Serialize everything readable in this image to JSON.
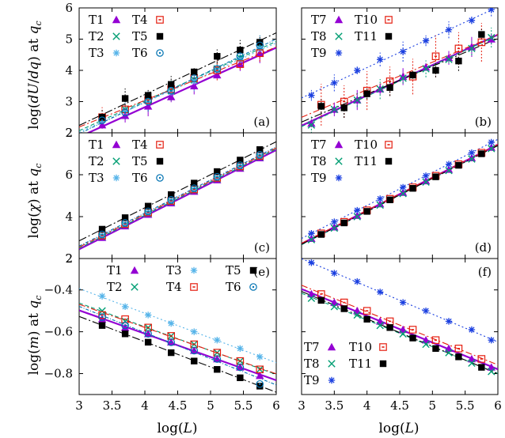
{
  "figure": {
    "xlabel_left": "log(L)",
    "xlabel_right": "log(L)",
    "row_ylabels": [
      "log(dU/dq) at q_c",
      "log(χ) at q_c",
      "log(m) at q_c"
    ]
  },
  "colors": {
    "T1": "#9400d3",
    "T2": "#009e73",
    "T3": "#56b4e9",
    "T4": "#e51e10",
    "T5": "#000000",
    "T6": "#0072b2",
    "T7": "#9400d3",
    "T8": "#009e73",
    "T9": "#1a3fe0",
    "T10": "#e51e10",
    "T11": "#000000"
  },
  "chart_data": [
    {
      "type": "scatter",
      "panel_label": "(a)",
      "xlim": [
        3,
        6
      ],
      "ylim": [
        2,
        6
      ],
      "xticks": [
        "3",
        "3.5",
        "4",
        "4.5",
        "5",
        "5.5",
        "6"
      ],
      "yticks": [
        "2",
        "3",
        "4",
        "5",
        "6"
      ],
      "xlabel": "",
      "ylabel": "log(dU/dq) at q_c",
      "legend_position": "top-left",
      "legend_cols": 2,
      "legend": [
        "T1",
        "T4",
        "T2",
        "T5",
        "T3",
        "T6"
      ],
      "series": [
        {
          "name": "T1",
          "marker": "triangle",
          "x": [
            3.35,
            3.7,
            4.05,
            4.4,
            4.75,
            5.1,
            5.45,
            5.75
          ],
          "y": [
            2.25,
            2.55,
            2.85,
            3.15,
            3.5,
            3.85,
            4.2,
            4.55
          ]
        },
        {
          "name": "T2",
          "marker": "x",
          "x": [
            3.35,
            3.7,
            4.05,
            4.4,
            4.75,
            5.1,
            5.45,
            5.75
          ],
          "y": [
            2.45,
            2.75,
            3.05,
            3.35,
            3.7,
            4.05,
            4.4,
            4.75
          ]
        },
        {
          "name": "T3",
          "marker": "star",
          "x": [
            3.35,
            3.7,
            4.05,
            4.4,
            4.75,
            5.1,
            5.45,
            5.75
          ],
          "y": [
            2.4,
            2.7,
            3.0,
            3.3,
            3.65,
            4.0,
            4.35,
            4.7
          ]
        },
        {
          "name": "T4",
          "marker": "boxdot",
          "x": [
            3.35,
            3.7,
            4.05,
            4.4,
            4.75,
            5.1,
            5.45,
            5.75
          ],
          "y": [
            2.5,
            2.75,
            3.05,
            3.4,
            3.75,
            4.0,
            4.2,
            4.55
          ]
        },
        {
          "name": "T5",
          "marker": "square",
          "x": [
            3.35,
            3.7,
            4.05,
            4.4,
            4.75,
            5.1,
            5.45,
            5.75
          ],
          "y": [
            2.5,
            3.1,
            3.2,
            3.55,
            3.95,
            4.45,
            4.65,
            4.9
          ]
        },
        {
          "name": "T6",
          "marker": "circle",
          "x": [
            3.35,
            3.7,
            4.05,
            4.4,
            4.75,
            5.1,
            5.45,
            5.75
          ],
          "y": [
            2.4,
            2.65,
            3.0,
            3.35,
            3.75,
            4.05,
            4.45,
            4.8
          ]
        }
      ]
    },
    {
      "type": "scatter",
      "panel_label": "(b)",
      "xlim": [
        3,
        6
      ],
      "ylim": [
        2,
        6
      ],
      "xticks": [
        "3",
        "3.5",
        "4",
        "4.5",
        "5",
        "5.5",
        "6"
      ],
      "yticks": [
        "2",
        "3",
        "4",
        "5",
        "6"
      ],
      "xlabel": "",
      "ylabel": "",
      "legend_position": "top-left",
      "legend_cols": 2,
      "legend": [
        "T7",
        "T10",
        "T8",
        "T11",
        "T9"
      ],
      "series": [
        {
          "name": "T7",
          "marker": "triangle",
          "x": [
            3.15,
            3.5,
            3.85,
            4.2,
            4.55,
            4.9,
            5.25,
            5.6,
            5.9
          ],
          "y": [
            2.3,
            2.75,
            3.05,
            3.4,
            3.8,
            4.1,
            4.4,
            4.75,
            5.0
          ]
        },
        {
          "name": "T8",
          "marker": "x",
          "x": [
            3.15,
            3.5,
            3.85,
            4.2,
            4.55,
            4.9,
            5.25,
            5.6,
            5.9
          ],
          "y": [
            2.25,
            2.75,
            3.05,
            3.4,
            3.75,
            4.05,
            4.35,
            4.7,
            5.05
          ]
        },
        {
          "name": "T9",
          "marker": "star",
          "x": [
            3.15,
            3.5,
            3.85,
            4.2,
            4.55,
            4.9,
            5.25,
            5.6,
            5.9
          ],
          "y": [
            3.2,
            3.6,
            4.0,
            4.35,
            4.6,
            4.95,
            5.3,
            5.6,
            5.95
          ]
        },
        {
          "name": "T10",
          "marker": "boxdot",
          "x": [
            3.3,
            3.65,
            4.0,
            4.35,
            4.7,
            5.05,
            5.4,
            5.75
          ],
          "y": [
            2.9,
            3.0,
            3.35,
            3.65,
            3.8,
            4.45,
            4.7,
            4.9
          ]
        },
        {
          "name": "T11",
          "marker": "square",
          "x": [
            3.3,
            3.65,
            4.0,
            4.35,
            4.7,
            5.05,
            5.4,
            5.75
          ],
          "y": [
            2.85,
            2.8,
            3.25,
            3.45,
            3.85,
            4.0,
            4.3,
            5.15
          ]
        }
      ]
    },
    {
      "type": "scatter",
      "panel_label": "(c)",
      "xlim": [
        3,
        6
      ],
      "ylim": [
        2,
        8
      ],
      "xticks": [
        "3",
        "3.5",
        "4",
        "4.5",
        "5",
        "5.5",
        "6"
      ],
      "yticks": [
        "2",
        "4",
        "6"
      ],
      "xlabel": "",
      "ylabel": "log(χ) at q_c",
      "legend_position": "top-left",
      "legend_cols": 2,
      "legend": [
        "T1",
        "T4",
        "T2",
        "T5",
        "T3",
        "T6"
      ],
      "series": [
        {
          "name": "T1",
          "marker": "triangle",
          "x": [
            3.35,
            3.7,
            4.05,
            4.4,
            4.75,
            5.1,
            5.45,
            5.75
          ],
          "y": [
            3.0,
            3.55,
            4.1,
            4.65,
            5.2,
            5.75,
            6.3,
            6.8
          ]
        },
        {
          "name": "T2",
          "marker": "x",
          "x": [
            3.35,
            3.7,
            4.05,
            4.4,
            4.75,
            5.1,
            5.45,
            5.75
          ],
          "y": [
            3.05,
            3.6,
            4.15,
            4.7,
            5.25,
            5.8,
            6.35,
            6.85
          ]
        },
        {
          "name": "T3",
          "marker": "star",
          "x": [
            3.35,
            3.7,
            4.05,
            4.4,
            4.75,
            5.1,
            5.45,
            5.75
          ],
          "y": [
            3.1,
            3.65,
            4.2,
            4.75,
            5.3,
            5.85,
            6.4,
            6.9
          ]
        },
        {
          "name": "T4",
          "marker": "boxdot",
          "x": [
            3.35,
            3.7,
            4.05,
            4.4,
            4.75,
            5.1,
            5.45,
            5.75
          ],
          "y": [
            3.1,
            3.65,
            4.2,
            4.75,
            5.3,
            5.85,
            6.4,
            6.9
          ]
        },
        {
          "name": "T5",
          "marker": "square",
          "x": [
            3.35,
            3.7,
            4.05,
            4.4,
            4.75,
            5.1,
            5.45,
            5.75
          ],
          "y": [
            3.4,
            3.95,
            4.5,
            5.05,
            5.6,
            6.15,
            6.7,
            7.2
          ]
        },
        {
          "name": "T6",
          "marker": "circle",
          "x": [
            3.35,
            3.7,
            4.05,
            4.4,
            4.75,
            5.1,
            5.45,
            5.75
          ],
          "y": [
            3.15,
            3.7,
            4.25,
            4.8,
            5.35,
            5.9,
            6.45,
            6.95
          ]
        }
      ]
    },
    {
      "type": "scatter",
      "panel_label": "(d)",
      "xlim": [
        3,
        6
      ],
      "ylim": [
        2,
        8
      ],
      "xticks": [
        "3",
        "3.5",
        "4",
        "4.5",
        "5",
        "5.5",
        "6"
      ],
      "yticks": [
        "2",
        "4",
        "6"
      ],
      "xlabel": "",
      "ylabel": "",
      "legend_position": "top-left",
      "legend_cols": 2,
      "legend": [
        "T7",
        "T10",
        "T8",
        "T11",
        "T9"
      ],
      "series": [
        {
          "name": "T7",
          "marker": "triangle",
          "x": [
            3.15,
            3.5,
            3.85,
            4.2,
            4.55,
            4.9,
            5.25,
            5.6,
            5.9
          ],
          "y": [
            2.95,
            3.5,
            4.05,
            4.6,
            5.15,
            5.7,
            6.25,
            6.8,
            7.3
          ]
        },
        {
          "name": "T8",
          "marker": "x",
          "x": [
            3.15,
            3.5,
            3.85,
            4.2,
            4.55,
            4.9,
            5.25,
            5.6,
            5.9
          ],
          "y": [
            2.9,
            3.45,
            4.0,
            4.55,
            5.1,
            5.65,
            6.2,
            6.75,
            7.25
          ]
        },
        {
          "name": "T9",
          "marker": "star",
          "x": [
            3.15,
            3.5,
            3.85,
            4.2,
            4.55,
            4.9,
            5.25,
            5.6,
            5.9
          ],
          "y": [
            3.2,
            3.75,
            4.3,
            4.85,
            5.4,
            5.95,
            6.5,
            7.05,
            7.55
          ]
        },
        {
          "name": "T10",
          "marker": "boxdot",
          "x": [
            3.3,
            3.65,
            4.0,
            4.35,
            4.7,
            5.05,
            5.4,
            5.75
          ],
          "y": [
            3.2,
            3.75,
            4.3,
            4.85,
            5.4,
            5.95,
            6.5,
            7.05
          ]
        },
        {
          "name": "T11",
          "marker": "square",
          "x": [
            3.3,
            3.65,
            4.0,
            4.35,
            4.7,
            5.05,
            5.4,
            5.75
          ],
          "y": [
            3.15,
            3.7,
            4.25,
            4.8,
            5.35,
            5.9,
            6.45,
            7.0
          ]
        }
      ]
    },
    {
      "type": "scatter",
      "panel_label": "(e)",
      "xlim": [
        3,
        6
      ],
      "ylim": [
        -0.9,
        -0.25
      ],
      "xticks": [
        "3",
        "3.5",
        "4",
        "4.5",
        "5",
        "5.5",
        "6"
      ],
      "yticks": [
        "-0.4",
        "-0.6",
        "-0.8"
      ],
      "xlabel": "log(L)",
      "ylabel": "log(m) at q_c",
      "legend_position": "top",
      "legend_cols": 3,
      "legend": [
        "T1",
        "T3",
        "T5",
        "T2",
        "T4",
        "T6"
      ],
      "series": [
        {
          "name": "T1",
          "marker": "triangle",
          "x": [
            3.35,
            3.7,
            4.05,
            4.4,
            4.75,
            5.1,
            5.45,
            5.75
          ],
          "y": [
            -0.54,
            -0.58,
            -0.61,
            -0.65,
            -0.69,
            -0.73,
            -0.77,
            -0.81
          ]
        },
        {
          "name": "T2",
          "marker": "x",
          "x": [
            3.35,
            3.7,
            4.05,
            4.4,
            4.75,
            5.1,
            5.45,
            5.75
          ],
          "y": [
            -0.5,
            -0.55,
            -0.58,
            -0.62,
            -0.66,
            -0.7,
            -0.74,
            -0.78
          ]
        },
        {
          "name": "T3",
          "marker": "star",
          "x": [
            3.35,
            3.7,
            4.05,
            4.4,
            4.75,
            5.1,
            5.45,
            5.75
          ],
          "y": [
            -0.43,
            -0.48,
            -0.52,
            -0.56,
            -0.6,
            -0.64,
            -0.68,
            -0.72
          ]
        },
        {
          "name": "T4",
          "marker": "boxdot",
          "x": [
            3.35,
            3.7,
            4.05,
            4.4,
            4.75,
            5.1,
            5.45,
            5.75
          ],
          "y": [
            -0.52,
            -0.54,
            -0.58,
            -0.62,
            -0.66,
            -0.7,
            -0.74,
            -0.78
          ]
        },
        {
          "name": "T5",
          "marker": "square",
          "x": [
            3.35,
            3.7,
            4.05,
            4.4,
            4.75,
            5.1,
            5.45,
            5.75
          ],
          "y": [
            -0.57,
            -0.61,
            -0.65,
            -0.7,
            -0.74,
            -0.78,
            -0.82,
            -0.86
          ]
        },
        {
          "name": "T6",
          "marker": "circle",
          "x": [
            3.35,
            3.7,
            4.05,
            4.4,
            4.75,
            5.1,
            5.45,
            5.75
          ],
          "y": [
            -0.53,
            -0.57,
            -0.61,
            -0.65,
            -0.69,
            -0.73,
            -0.77,
            -0.85
          ]
        }
      ]
    },
    {
      "type": "scatter",
      "panel_label": "(f)",
      "xlim": [
        3,
        6
      ],
      "ylim": [
        -0.9,
        -0.25
      ],
      "xticks": [
        "3",
        "3.5",
        "4",
        "4.5",
        "5",
        "5.5",
        "6"
      ],
      "yticks": [
        "-0.4",
        "-0.6",
        "-0.8"
      ],
      "xlabel": "log(L)",
      "ylabel": "",
      "legend_position": "bottom-left",
      "legend_cols": 2,
      "legend": [
        "T7",
        "T10",
        "T8",
        "T11",
        "T9"
      ],
      "series": [
        {
          "name": "T7",
          "marker": "triangle",
          "x": [
            3.15,
            3.5,
            3.85,
            4.2,
            4.55,
            4.9,
            5.25,
            5.6,
            5.9
          ],
          "y": [
            -0.42,
            -0.46,
            -0.5,
            -0.55,
            -0.59,
            -0.64,
            -0.68,
            -0.73,
            -0.77
          ]
        },
        {
          "name": "T8",
          "marker": "x",
          "x": [
            3.15,
            3.5,
            3.85,
            4.2,
            4.55,
            4.9,
            5.25,
            5.6,
            5.9
          ],
          "y": [
            -0.44,
            -0.48,
            -0.52,
            -0.57,
            -0.61,
            -0.66,
            -0.7,
            -0.75,
            -0.79
          ]
        },
        {
          "name": "T9",
          "marker": "star",
          "x": [
            3.15,
            3.5,
            3.85,
            4.2,
            4.55,
            4.9,
            5.25,
            5.6,
            5.9
          ],
          "y": [
            -0.27,
            -0.32,
            -0.36,
            -0.41,
            -0.46,
            -0.5,
            -0.55,
            -0.59,
            -0.64
          ]
        },
        {
          "name": "T10",
          "marker": "boxdot",
          "x": [
            3.3,
            3.65,
            4.0,
            4.35,
            4.7,
            5.05,
            5.4,
            5.75
          ],
          "y": [
            -0.42,
            -0.46,
            -0.5,
            -0.55,
            -0.59,
            -0.64,
            -0.68,
            -0.73
          ]
        },
        {
          "name": "T11",
          "marker": "square",
          "x": [
            3.3,
            3.65,
            4.0,
            4.35,
            4.7,
            5.05,
            5.4,
            5.75
          ],
          "y": [
            -0.45,
            -0.49,
            -0.54,
            -0.58,
            -0.63,
            -0.68,
            -0.72,
            -0.77
          ]
        }
      ]
    }
  ]
}
